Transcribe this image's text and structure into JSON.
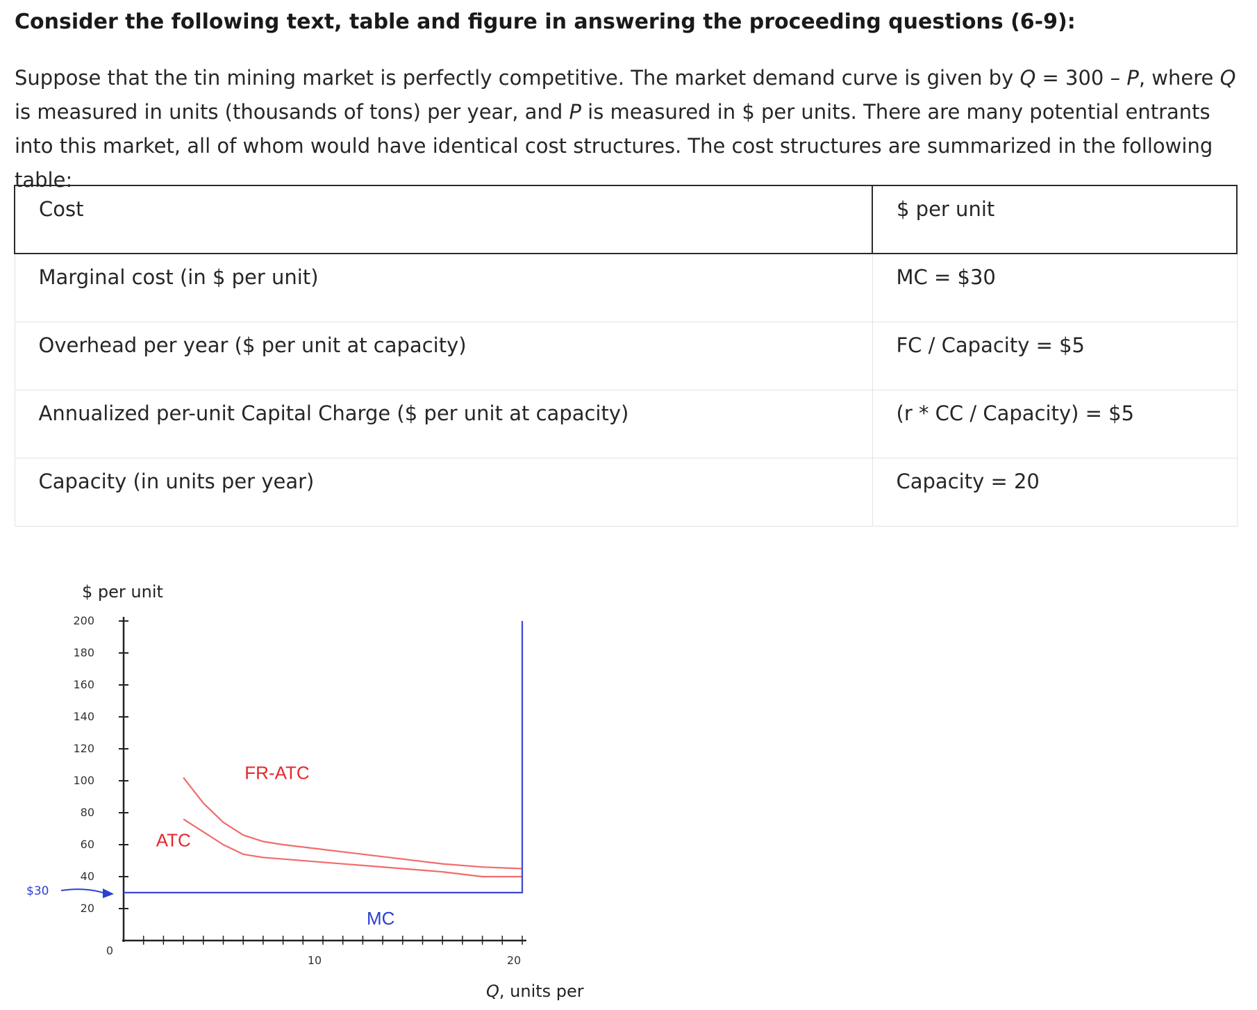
{
  "heading": "Consider the following text, table and figure in answering the proceeding questions (6-9):",
  "intro": {
    "part1": "Suppose that the tin mining market is perfectly competitive. The market demand curve is given by ",
    "q1": "Q",
    "part2": " = 300 – ",
    "p1": "P",
    "part3": ", where ",
    "q2": "Q",
    "part4": " is measured in units (thousands of tons) per year, and ",
    "p2": "P",
    "part5": " is measured in $ per units. There are many potential entrants into this market, all of whom would have identical cost structures. The cost structures are summarized in the following table:"
  },
  "table": {
    "headers": [
      "Cost",
      "$ per unit"
    ],
    "rows": [
      {
        "cost": "Marginal cost (in $ per unit)",
        "value": "MC = $30"
      },
      {
        "cost": "Overhead per year ($ per unit at capacity)",
        "value": "FC / Capacity = $5"
      },
      {
        "cost": "Annualized per-unit Capital Charge ($ per unit at capacity)",
        "value": "(r * CC / Capacity) = $5"
      },
      {
        "cost": "Capacity (in units per year)",
        "value": "Capacity = 20"
      }
    ]
  },
  "chart_data": {
    "type": "line",
    "ylabel": "$ per unit",
    "xlabel": "Q, units per",
    "ylim": [
      0,
      200
    ],
    "xlim": [
      0,
      20
    ],
    "y_ticks": [
      20,
      40,
      60,
      80,
      100,
      120,
      140,
      160,
      180,
      200
    ],
    "x_tick_labels": [
      0,
      10,
      20
    ],
    "y_marker": {
      "label": "$30",
      "value": 30
    },
    "annotations": [
      {
        "text": "FR-ATC",
        "color": "#e8262b"
      },
      {
        "text": "ATC",
        "color": "#e8262b"
      },
      {
        "text": "MC",
        "color": "#2b3fd1"
      }
    ],
    "series": [
      {
        "name": "FR-ATC",
        "color": "#f26b6b",
        "x": [
          3,
          4,
          5,
          6,
          7,
          8,
          10,
          12,
          14,
          16,
          18,
          20
        ],
        "y": [
          102,
          86,
          74,
          66,
          62,
          60,
          57,
          54,
          51,
          48,
          46,
          45
        ]
      },
      {
        "name": "ATC",
        "color": "#f26b6b",
        "x": [
          3,
          4,
          5,
          6,
          7,
          8,
          10,
          12,
          14,
          16,
          18,
          20
        ],
        "y": [
          76,
          68,
          60,
          54,
          52,
          51,
          49,
          47,
          45,
          43,
          40,
          40
        ]
      },
      {
        "name": "MC",
        "color": "#3a46d6",
        "x": [
          0,
          20,
          20
        ],
        "y": [
          30,
          30,
          200
        ]
      }
    ]
  }
}
